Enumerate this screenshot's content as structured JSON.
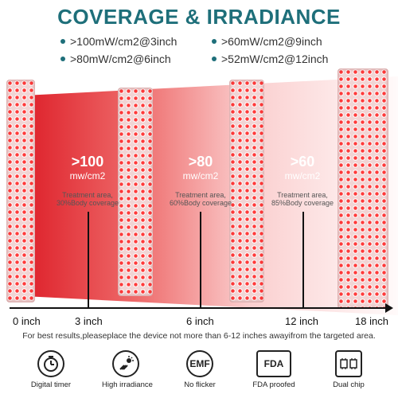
{
  "title": "COVERAGE & IRRADIANCE",
  "specs": [
    ">100mW/cm2@3inch",
    ">60mW/cm2@9inch",
    ">80mW/cm2@6inch",
    ">52mW/cm2@12inch"
  ],
  "zones": [
    {
      "power": ">100",
      "unit": "mw/cm2",
      "area_line1": "Treatment area,",
      "area_line2": "30%Body coverage"
    },
    {
      "power": ">80",
      "unit": "mw/cm2",
      "area_line1": "Treatment area,",
      "area_line2": "60%Body coverage"
    },
    {
      "power": ">60",
      "unit": "mw/cm2",
      "area_line1": "Treatment area,",
      "area_line2": "85%Body coverage"
    }
  ],
  "distances": [
    "0 inch",
    "3 inch",
    "6 inch",
    "12 inch",
    "18 inch"
  ],
  "note": "For best results,pleaseplace the device not more than 6-12 inches awayifrom the targeted area.",
  "features": [
    {
      "label": "Digital timer",
      "icon": "timer-icon"
    },
    {
      "label": "High irradiance",
      "icon": "irradiance-icon"
    },
    {
      "label": "No flicker",
      "icon": "emf-icon",
      "badge": "EMF"
    },
    {
      "label": "FDA proofed",
      "icon": "fda-icon",
      "badge": "FDA"
    },
    {
      "label": "Dual chip",
      "icon": "chip-icon"
    }
  ],
  "colors": {
    "title": "#1e6f7a",
    "led": "#ff3b3b",
    "beam": "#dc141e"
  }
}
